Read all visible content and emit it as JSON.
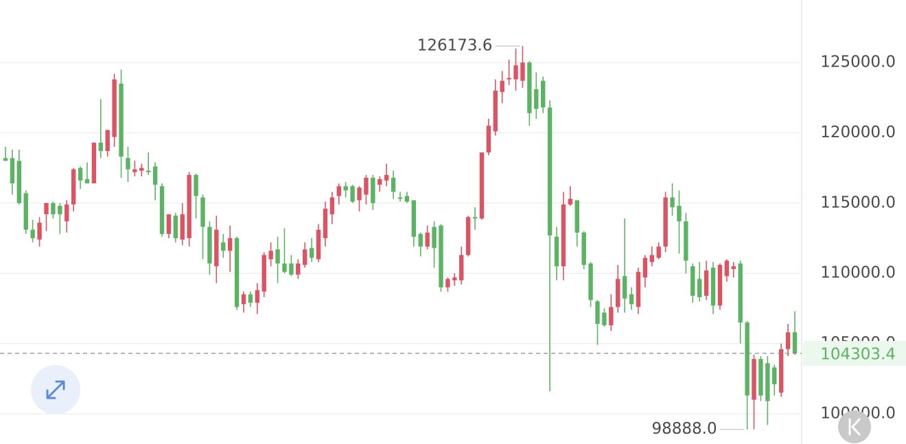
{
  "chart_data": {
    "type": "candlestick",
    "open": [
      118200,
      118200,
      118000,
      115700,
      113100,
      112400,
      114200,
      115000,
      114800,
      113700,
      114900,
      117500,
      116700,
      116400,
      119300,
      118700,
      119700,
      123500,
      118200,
      117200,
      117300,
      117300,
      117600,
      116200,
      112800,
      114100,
      112400,
      112500,
      117000,
      115400,
      113300,
      110500,
      112200,
      111600,
      112500,
      107800,
      108500,
      107900,
      108700,
      111000,
      111700,
      110700,
      110700,
      109900,
      110600,
      111800,
      111000,
      112500,
      114200,
      115500,
      116200,
      116200,
      115200,
      115600,
      116800,
      116300,
      116600,
      116800,
      115400,
      115500,
      115200,
      112800,
      111900,
      113300,
      113400,
      109000,
      109500,
      109500,
      111300,
      114000,
      113900,
      118600,
      120100,
      122900,
      123800,
      123800,
      123700,
      125000,
      123100,
      123700,
      121800,
      112600,
      110500,
      114900,
      115200,
      112900,
      110700,
      108000,
      107200,
      106300,
      107600,
      109800,
      108500,
      107600,
      109700,
      110800,
      111100,
      111900,
      115400,
      114800,
      113700,
      110500,
      109600,
      108400,
      110400,
      107700,
      109800,
      110300,
      110700,
      106500,
      101000,
      103900,
      103600,
      103300,
      101500,
      104600,
      105800
    ],
    "high": [
      119000,
      118800,
      118800,
      115900,
      113800,
      114000,
      115000,
      115100,
      115000,
      115200,
      117500,
      117600,
      117900,
      119300,
      122400,
      120200,
      124200,
      124500,
      119000,
      118000,
      117800,
      118600,
      117900,
      116400,
      114200,
      114300,
      115000,
      117200,
      117100,
      115600,
      113700,
      114100,
      112800,
      113400,
      112600,
      108700,
      108700,
      109300,
      111500,
      112200,
      112600,
      113200,
      111300,
      111000,
      112200,
      112500,
      113500,
      115100,
      115800,
      116400,
      116500,
      116300,
      116200,
      117000,
      117000,
      116900,
      117800,
      117300,
      115800,
      115800,
      115200,
      112900,
      113400,
      113700,
      113500,
      109700,
      110000,
      111900,
      114100,
      114700,
      118600,
      121000,
      123800,
      124400,
      125200,
      126000,
      126173.6,
      125100,
      124300,
      124000,
      122300,
      113300,
      115800,
      116200,
      115200,
      113000,
      110800,
      108100,
      107500,
      108500,
      110600,
      113900,
      109000,
      110400,
      111300,
      111900,
      112200,
      115800,
      116400,
      115900,
      114300,
      110700,
      110800,
      110900,
      110800,
      110700,
      111000,
      110800,
      110900,
      106600,
      104200,
      104100,
      104100,
      103500,
      105000,
      106400,
      107300
    ],
    "low": [
      118000,
      115600,
      114900,
      112800,
      112200,
      111900,
      113000,
      113900,
      112800,
      112900,
      114400,
      116000,
      116400,
      116400,
      118200,
      118300,
      119000,
      116800,
      116500,
      116900,
      116900,
      117000,
      115200,
      112600,
      112500,
      112200,
      112000,
      111900,
      113900,
      111000,
      109900,
      109300,
      111100,
      110100,
      107400,
      107200,
      107600,
      107100,
      108300,
      110500,
      109300,
      110000,
      109800,
      109600,
      110400,
      110800,
      110800,
      111900,
      113500,
      114900,
      115400,
      115000,
      114400,
      114900,
      114500,
      115800,
      116200,
      115300,
      115100,
      115000,
      111900,
      111200,
      111700,
      110400,
      108700,
      108700,
      109100,
      109200,
      111200,
      113100,
      113800,
      118400,
      119800,
      122100,
      123400,
      123000,
      123200,
      120500,
      121000,
      121400,
      101600,
      109500,
      109500,
      114800,
      111900,
      110300,
      107600,
      104900,
      106200,
      105900,
      107200,
      107200,
      107400,
      107100,
      109000,
      110500,
      111000,
      111500,
      114100,
      111400,
      110000,
      107900,
      108000,
      108100,
      107100,
      107400,
      109400,
      109700,
      105000,
      98888,
      98900,
      100900,
      99200,
      101300,
      101200,
      104100,
      104200
    ],
    "close": [
      118000,
      116400,
      115000,
      113100,
      112500,
      113600,
      115000,
      114200,
      114200,
      114900,
      117400,
      116600,
      116400,
      119300,
      118700,
      120200,
      123800,
      118300,
      117400,
      117400,
      117500,
      117200,
      116300,
      112800,
      114200,
      112500,
      114200,
      117000,
      115500,
      113300,
      110700,
      113100,
      111600,
      112500,
      107600,
      108500,
      107900,
      108800,
      111300,
      111600,
      110700,
      110100,
      109900,
      110700,
      111700,
      111100,
      113100,
      114600,
      115400,
      116200,
      115900,
      115100,
      116100,
      116800,
      115000,
      116700,
      117000,
      115800,
      115300,
      115100,
      112600,
      111900,
      112900,
      111800,
      109000,
      109600,
      109700,
      111300,
      114000,
      113900,
      118600,
      120500,
      123000,
      123700,
      123900,
      124800,
      125000,
      121400,
      121700,
      121800,
      112700,
      110500,
      114900,
      115300,
      112900,
      110600,
      108100,
      106400,
      106300,
      107600,
      109600,
      108200,
      107800,
      110100,
      111100,
      111300,
      111900,
      115400,
      114700,
      113700,
      110900,
      108400,
      108300,
      110200,
      107700,
      110600,
      110900,
      110500,
      106500,
      101300,
      103900,
      101300,
      100900,
      102100,
      104600,
      105800,
      104303.4
    ],
    "up_color": "#dc5463",
    "down_color": "#5cb363",
    "ylim": [
      97850,
      129450
    ],
    "yticks": [
      {
        "value": 100000,
        "label": "100000.0"
      },
      {
        "value": 105000,
        "label": "105000.0"
      },
      {
        "value": 110000,
        "label": "110000.0"
      },
      {
        "value": 115000,
        "label": "115000.0"
      },
      {
        "value": 120000,
        "label": "120000.0"
      },
      {
        "value": 125000,
        "label": "125000.0"
      }
    ],
    "grid": true,
    "annotations": [
      {
        "value": 126173.6,
        "label": "126173.6"
      },
      {
        "value": 98888,
        "label": "98888.0"
      },
      {
        "value": 104303.4,
        "label": "104303.4"
      }
    ]
  }
}
